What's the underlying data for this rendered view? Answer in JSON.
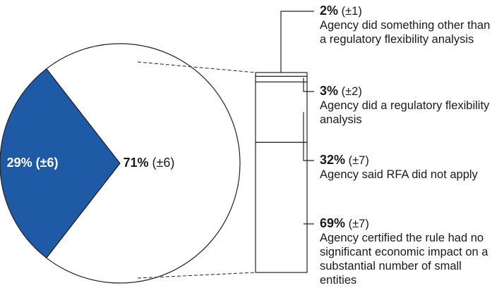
{
  "chart_data": [
    {
      "type": "pie",
      "values": [
        29,
        71
      ],
      "value_labels": [
        "29%",
        "71%"
      ],
      "errors": [
        6,
        6
      ],
      "error_labels": [
        "(±6)",
        "(±6)"
      ],
      "colors": [
        "#1f5aa6",
        "#ffffff"
      ]
    },
    {
      "type": "stacked_bar",
      "categories": [
        "Agency did something other than a regulatory flexibility analysis",
        "Agency did a regulatory flexibility analysis",
        "Agency said RFA did not apply",
        "Agency certified the rule had no significant economic impact on a substantial number of small entities"
      ],
      "values": [
        2,
        3,
        32,
        69
      ],
      "value_labels": [
        "2%",
        "3%",
        "32%",
        "69%"
      ],
      "errors": [
        1,
        2,
        7,
        7
      ],
      "error_labels": [
        "(±1)",
        "(±2)",
        "(±7)",
        "(±7)"
      ],
      "color": "#ffffff"
    }
  ]
}
